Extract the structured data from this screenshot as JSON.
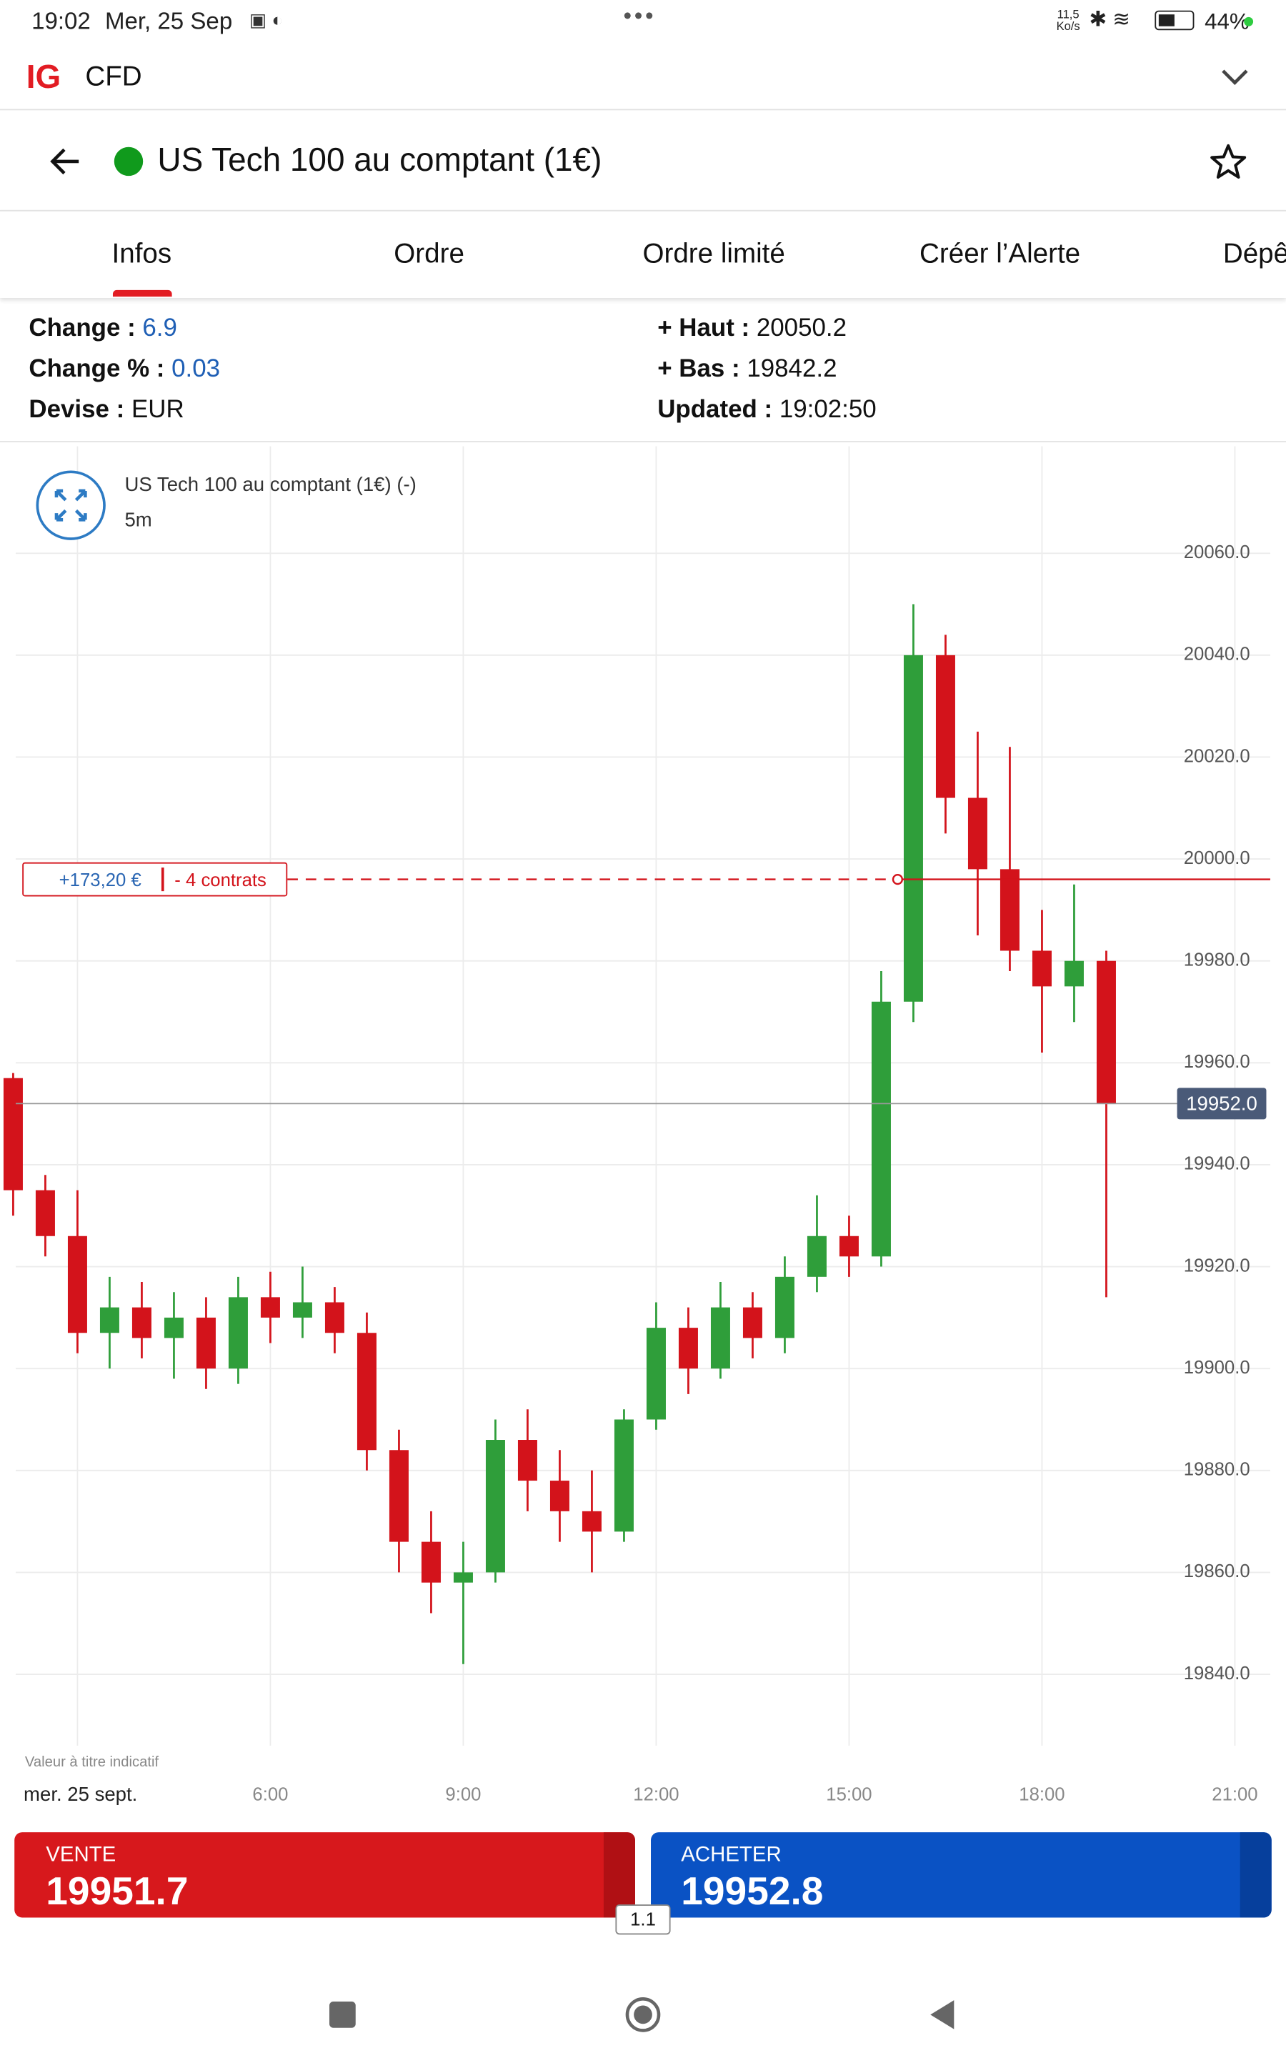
{
  "status_bar": {
    "time": "19:02",
    "date": "Mer, 25 Sep",
    "speed": "11,5",
    "speed_unit": "Ko/s",
    "battery": "44%"
  },
  "app_bar": {
    "logo": "IG",
    "title": "CFD"
  },
  "header": {
    "title": "US Tech 100 au comptant (1€)"
  },
  "tabs": [
    "Infos",
    "Ordre",
    "Ordre limité",
    "Créer l’Alerte",
    "Dépêches"
  ],
  "info": {
    "left": [
      {
        "label": "Change :",
        "value": "6.9"
      },
      {
        "label": "Change % :",
        "value": "0.03"
      },
      {
        "label": "Devise :",
        "value": "EUR"
      }
    ],
    "right": [
      {
        "label": "+ Haut :",
        "value": "20050.2"
      },
      {
        "label": "+ Bas :",
        "value": "19842.2"
      },
      {
        "label": "Updated :",
        "value": "19:02:50"
      }
    ]
  },
  "chart_header": {
    "title": "US Tech 100 au comptant (1€) (-)",
    "interval": "5m",
    "note": "Valeur à titre indicatif"
  },
  "chart_data": {
    "type": "candlestick",
    "x": [
      2,
      2.5,
      3,
      3.5,
      4,
      4.5,
      5,
      5.5,
      6,
      6.5,
      7,
      7.5,
      8,
      8.5,
      9,
      9.5,
      10,
      10.5,
      11,
      11.5,
      12,
      12.5,
      13,
      13.5,
      14,
      14.5,
      15,
      15.5,
      16,
      16.5,
      17,
      17.5,
      18,
      18.5,
      19
    ],
    "open": [
      19957,
      19935,
      19926,
      19907,
      19912,
      19906,
      19910,
      19900,
      19914,
      19910,
      19913,
      19907,
      19884,
      19866,
      19858,
      19860,
      19886,
      19878,
      19872,
      19868,
      19890,
      19908,
      19900,
      19912,
      19906,
      19918,
      19926,
      19922,
      19972,
      20040,
      20012,
      19998,
      19982,
      19975,
      19980
    ],
    "high": [
      19958,
      19938,
      19935,
      19918,
      19917,
      19915,
      19914,
      19918,
      19919,
      19920,
      19916,
      19911,
      19888,
      19872,
      19866,
      19890,
      19892,
      19884,
      19880,
      19892,
      19913,
      19912,
      19917,
      19915,
      19922,
      19934,
      19930,
      19978,
      20050,
      20044,
      20025,
      20022,
      19990,
      19995,
      19982
    ],
    "low": [
      19930,
      19922,
      19903,
      19900,
      19902,
      19898,
      19896,
      19897,
      19905,
      19906,
      19903,
      19880,
      19860,
      19852,
      19842,
      19858,
      19872,
      19866,
      19860,
      19866,
      19888,
      19895,
      19898,
      19902,
      19903,
      19915,
      19918,
      19920,
      19968,
      20005,
      19985,
      19978,
      19962,
      19968,
      19914
    ],
    "close": [
      19935,
      19926,
      19907,
      19912,
      19906,
      19910,
      19900,
      19914,
      19910,
      19913,
      19907,
      19884,
      19866,
      19858,
      19860,
      19886,
      19878,
      19872,
      19868,
      19890,
      19908,
      19900,
      19912,
      19906,
      19918,
      19926,
      19922,
      19972,
      20040,
      20012,
      19998,
      19982,
      19975,
      19980,
      19952
    ],
    "up_color": "#2f9e3a",
    "down_color": "#d3131b",
    "xlim": [
      2.04,
      21.55
    ],
    "xticks": [
      {
        "value": 3,
        "label": "mer. 25 sept."
      },
      {
        "value": 6,
        "label": "6:00"
      },
      {
        "value": 9,
        "label": "9:00"
      },
      {
        "value": 12,
        "label": "12:00"
      },
      {
        "value": 15,
        "label": "15:00"
      },
      {
        "value": 18,
        "label": "18:00"
      },
      {
        "value": 21,
        "label": "21:00"
      }
    ],
    "ylim": [
      19826,
      20081
    ],
    "yticks": [
      {
        "value": 19840,
        "label": "19840.0"
      },
      {
        "value": 19860,
        "label": "19860.0"
      },
      {
        "value": 19880,
        "label": "19880.0"
      },
      {
        "value": 19900,
        "label": "19900.0"
      },
      {
        "value": 19920,
        "label": "19920.0"
      },
      {
        "value": 19940,
        "label": "19940.0"
      },
      {
        "value": 19960,
        "label": "19960.0"
      },
      {
        "value": 19980,
        "label": "19980.0"
      },
      {
        "value": 20000,
        "label": "20000.0"
      },
      {
        "value": 20020,
        "label": "20020.0"
      },
      {
        "value": 20040,
        "label": "20040.0"
      },
      {
        "value": 20060,
        "label": "20060.0"
      }
    ],
    "grid": true,
    "position": {
      "level": 19996,
      "pnl": "+173,20 €",
      "size": "- 4 contrats"
    },
    "last_price": {
      "value": 19952,
      "label": "19952.0"
    }
  },
  "trade": {
    "sell": {
      "label": "VENTE",
      "price": "19951.7"
    },
    "buy": {
      "label": "ACHETER",
      "price": "19952.8"
    },
    "spread": "1.1"
  }
}
